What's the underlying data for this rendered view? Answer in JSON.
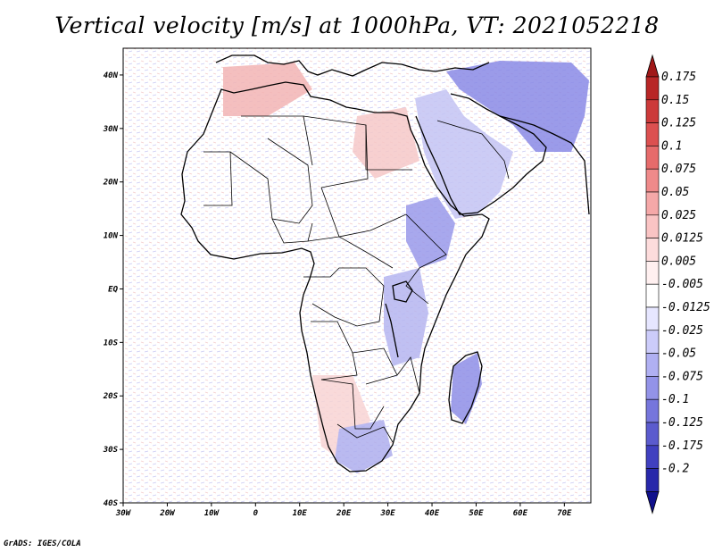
{
  "title": "Vertical velocity [m/s] at 1000hPa, VT: 2021052218",
  "credit": "GrADS: IGES/COLA",
  "map": {
    "lon_range": [
      -30,
      76
    ],
    "lat_range": [
      -40,
      45
    ],
    "lon_ticks": [
      {
        "value": -30,
        "label": "30W"
      },
      {
        "value": -20,
        "label": "20W"
      },
      {
        "value": -10,
        "label": "10W"
      },
      {
        "value": 0,
        "label": "0"
      },
      {
        "value": 10,
        "label": "10E"
      },
      {
        "value": 20,
        "label": "20E"
      },
      {
        "value": 30,
        "label": "30E"
      },
      {
        "value": 40,
        "label": "40E"
      },
      {
        "value": 50,
        "label": "50E"
      },
      {
        "value": 60,
        "label": "60E"
      },
      {
        "value": 70,
        "label": "70E"
      }
    ],
    "lat_ticks": [
      {
        "value": 40,
        "label": "40N"
      },
      {
        "value": 30,
        "label": "30N"
      },
      {
        "value": 20,
        "label": "20N"
      },
      {
        "value": 10,
        "label": "10N"
      },
      {
        "value": 0,
        "label": "EQ"
      },
      {
        "value": -10,
        "label": "10S"
      },
      {
        "value": -20,
        "label": "20S"
      },
      {
        "value": -30,
        "label": "30S"
      },
      {
        "value": -40,
        "label": "40S"
      }
    ],
    "colorbar": [
      {
        "label": "",
        "color": "#a01818"
      },
      {
        "label": "0.175",
        "color": "#b82626"
      },
      {
        "label": "0.15",
        "color": "#cc3a3a"
      },
      {
        "label": "0.125",
        "color": "#dc5050"
      },
      {
        "label": "0.1",
        "color": "#e66b6b"
      },
      {
        "label": "0.075",
        "color": "#ef8a8a"
      },
      {
        "label": "0.05",
        "color": "#f5a8a8"
      },
      {
        "label": "0.025",
        "color": "#fac4c4"
      },
      {
        "label": "0.0125",
        "color": "#fddcdc"
      },
      {
        "label": "0.005",
        "color": "#fff0f0"
      },
      {
        "label": "-0.005",
        "color": "#ffffff"
      },
      {
        "label": "-0.0125",
        "color": "#e6e6ff"
      },
      {
        "label": "-0.025",
        "color": "#ccccfa"
      },
      {
        "label": "-0.05",
        "color": "#b0b0f2"
      },
      {
        "label": "-0.075",
        "color": "#9393e8"
      },
      {
        "label": "-0.1",
        "color": "#7676dc"
      },
      {
        "label": "-0.125",
        "color": "#5b5bce"
      },
      {
        "label": "-0.175",
        "color": "#4040c0"
      },
      {
        "label": "-0.2",
        "color": "#2828aa"
      },
      {
        "label": "",
        "color": "#10108c"
      }
    ]
  }
}
